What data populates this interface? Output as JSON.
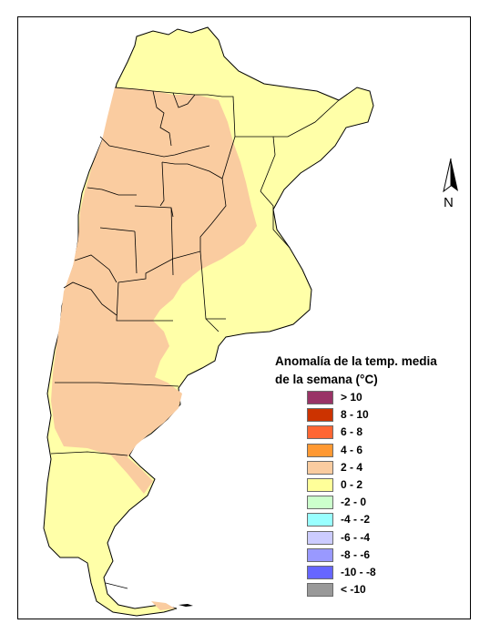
{
  "map": {
    "north_label": "N",
    "base_fill": "#FFFFA8",
    "anomaly_fill": "#FACCA0",
    "boundary_color": "#000000"
  },
  "legend": {
    "title_line1": "Anomalía de la temp. media",
    "title_line2": "de la semana (°C)",
    "items": [
      {
        "label": "> 10",
        "color": "#993366"
      },
      {
        "label": "8 - 10",
        "color": "#CC3300"
      },
      {
        "label": "6 - 8",
        "color": "#FF6633"
      },
      {
        "label": "4 - 6",
        "color": "#FF9933"
      },
      {
        "label": "2 - 4",
        "color": "#FACCA0"
      },
      {
        "label": "0 - 2",
        "color": "#FFFF99"
      },
      {
        "label": "-2 - 0",
        "color": "#CCFFCC"
      },
      {
        "label": "-4 - -2",
        "color": "#99FFFF"
      },
      {
        "label": "-6 - -4",
        "color": "#CCCCFF"
      },
      {
        "label": "-8 - -6",
        "color": "#9999FF"
      },
      {
        "label": "-10 - -8",
        "color": "#6666FF"
      },
      {
        "label": "< -10",
        "color": "#999999"
      }
    ]
  }
}
